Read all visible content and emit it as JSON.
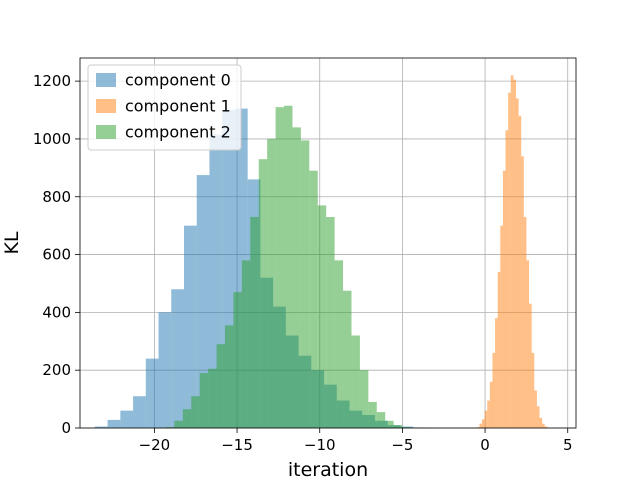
{
  "chart_data": {
    "type": "histogram",
    "xlabel": "iteration",
    "ylabel": "KL",
    "xlim": [
      -24.5,
      5.5
    ],
    "ylim": [
      0,
      1280
    ],
    "xticks": [
      -20,
      -15,
      -10,
      -5,
      0,
      5
    ],
    "xtick_labels": [
      "−20",
      "−15",
      "−10",
      "−5",
      "0",
      "5"
    ],
    "yticks": [
      0,
      200,
      400,
      600,
      800,
      1000,
      1200
    ],
    "ytick_labels": [
      "0",
      "200",
      "400",
      "600",
      "800",
      "1000",
      "1200"
    ],
    "grid": true,
    "legend_position": "upper-left",
    "series": [
      {
        "name": "component 0",
        "color": "#1f77b4",
        "alpha": 0.5,
        "bin_start": -23.6,
        "bin_width": 0.77,
        "counts": [
          5,
          28,
          60,
          110,
          240,
          400,
          480,
          700,
          875,
          1015,
          1100,
          1105,
          860,
          520,
          420,
          320,
          250,
          200,
          150,
          95,
          60,
          45,
          25,
          10,
          5,
          2,
          1
        ]
      },
      {
        "name": "component 1",
        "color": "#ff7f0e",
        "alpha": 0.5,
        "bin_start": -0.5,
        "bin_width": 0.158,
        "counts": [
          3,
          15,
          30,
          60,
          95,
          160,
          260,
          380,
          540,
          700,
          890,
          1030,
          1160,
          1220,
          1205,
          1140,
          1080,
          940,
          730,
          580,
          430,
          260,
          130,
          75,
          35,
          15,
          5
        ]
      },
      {
        "name": "component 2",
        "color": "#2ca02c",
        "alpha": 0.5,
        "bin_start": -19.3,
        "bin_width": 0.51,
        "counts": [
          3,
          25,
          65,
          110,
          190,
          205,
          290,
          355,
          470,
          580,
          730,
          930,
          1000,
          1110,
          1115,
          1040,
          995,
          890,
          770,
          730,
          580,
          475,
          320,
          200,
          90,
          55,
          25,
          10,
          3
        ]
      }
    ]
  }
}
